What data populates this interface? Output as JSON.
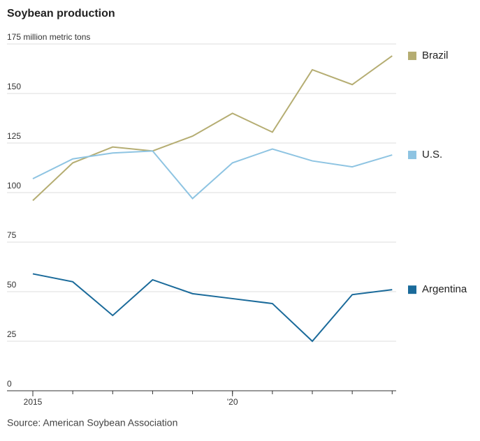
{
  "chart_data": {
    "type": "line",
    "title": "Soybean production",
    "source": "Source: American Soybean Association",
    "x": [
      2015,
      2016,
      2017,
      2018,
      2019,
      2020,
      2021,
      2022,
      2023,
      2024
    ],
    "series": [
      {
        "name": "Brazil",
        "color": "#b5ad72",
        "values": [
          96,
          115,
          123,
          121,
          128.5,
          140,
          130.5,
          162,
          154.5,
          169
        ]
      },
      {
        "name": "U.S.",
        "color": "#8ec4e2",
        "values": [
          107,
          117,
          120,
          121,
          97,
          115,
          122,
          116,
          113,
          119
        ]
      },
      {
        "name": "Argentina",
        "color": "#1a6a9a",
        "values": [
          59,
          55,
          38,
          56,
          49,
          46.5,
          44,
          25,
          48.5,
          51
        ]
      }
    ],
    "xlim": [
      2015,
      2024.1
    ],
    "ylim": [
      0,
      175
    ],
    "xticks": [
      2015,
      {
        "value": 2020,
        "label": "'20"
      }
    ],
    "yticks": [
      0,
      25,
      50,
      75,
      100,
      125,
      150,
      {
        "value": 175,
        "label": "175 million metric tons"
      }
    ],
    "grid": true
  }
}
